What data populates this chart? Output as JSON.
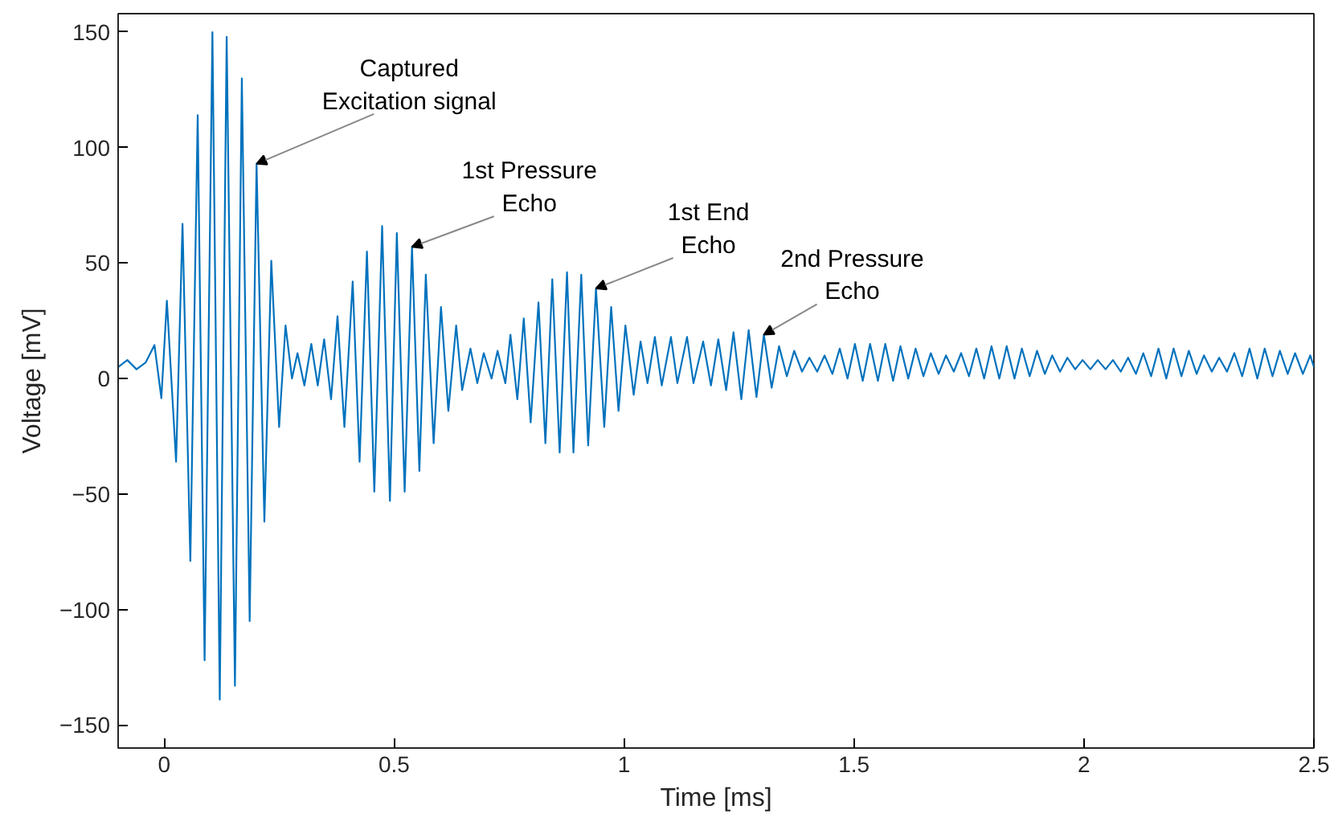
{
  "chart_data": {
    "type": "line",
    "xlabel": "Time [ms]",
    "ylabel": "Voltage [mV]",
    "xlim": [
      -0.1,
      2.5
    ],
    "ylim": [
      -160,
      158
    ],
    "xticks": [
      0,
      0.5,
      1,
      1.5,
      2,
      2.5
    ],
    "yticks": [
      -150,
      -100,
      -50,
      0,
      50,
      100,
      150
    ],
    "grid": false,
    "marker": "none",
    "line_style": "solid",
    "annotations": [
      {
        "text": "Captured\nExcitation signal",
        "x": 0.201,
        "y": 93
      },
      {
        "text": "1st Pressure\nEcho",
        "x": 0.539,
        "y": 57
      },
      {
        "text": "1st End\nEcho",
        "x": 0.939,
        "y": 39
      },
      {
        "text": "2nd Pressure\nEcho",
        "x": 1.304,
        "y": 19
      }
    ],
    "series": [
      {
        "color": "#0072bd",
        "x": [
          -0.1,
          -0.08,
          -0.06,
          -0.04,
          -0.021,
          -0.006,
          0.006,
          0.026,
          0.04,
          0.057,
          0.073,
          0.088,
          0.105,
          0.121,
          0.136,
          0.154,
          0.169,
          0.186,
          0.201,
          0.218,
          0.233,
          0.25,
          0.264,
          0.278,
          0.29,
          0.305,
          0.32,
          0.334,
          0.348,
          0.363,
          0.377,
          0.392,
          0.41,
          0.425,
          0.441,
          0.457,
          0.474,
          0.491,
          0.506,
          0.523,
          0.539,
          0.555,
          0.569,
          0.586,
          0.602,
          0.618,
          0.635,
          0.648,
          0.666,
          0.681,
          0.695,
          0.712,
          0.725,
          0.742,
          0.753,
          0.768,
          0.782,
          0.797,
          0.814,
          0.829,
          0.844,
          0.86,
          0.876,
          0.89,
          0.907,
          0.922,
          0.939,
          0.957,
          0.972,
          0.988,
          1.003,
          1.021,
          1.036,
          1.051,
          1.067,
          1.082,
          1.102,
          1.116,
          1.137,
          1.151,
          1.172,
          1.189,
          1.205,
          1.222,
          1.238,
          1.255,
          1.271,
          1.288,
          1.304,
          1.321,
          1.337,
          1.354,
          1.37,
          1.387,
          1.403,
          1.42,
          1.436,
          1.453,
          1.469,
          1.486,
          1.502,
          1.519,
          1.535,
          1.552,
          1.568,
          1.585,
          1.601,
          1.618,
          1.634,
          1.651,
          1.667,
          1.684,
          1.7,
          1.717,
          1.733,
          1.75,
          1.766,
          1.783,
          1.799,
          1.816,
          1.832,
          1.849,
          1.865,
          1.882,
          1.898,
          1.915,
          1.931,
          1.948,
          1.964,
          1.981,
          1.997,
          2.014,
          2.03,
          2.047,
          2.063,
          2.08,
          2.096,
          2.113,
          2.129,
          2.146,
          2.162,
          2.179,
          2.195,
          2.212,
          2.228,
          2.245,
          2.261,
          2.278,
          2.294,
          2.311,
          2.327,
          2.344,
          2.36,
          2.377,
          2.393,
          2.41,
          2.426,
          2.443,
          2.459,
          2.476,
          2.492,
          2.5
        ],
        "values": [
          5,
          8,
          4,
          7,
          14.5,
          -8.5,
          33.7,
          -36,
          67,
          -79,
          114,
          -122,
          150,
          -139,
          148,
          -133,
          130,
          -105,
          93,
          -62,
          51,
          -21,
          23,
          0,
          11,
          -3,
          15,
          -3,
          17,
          -9,
          27,
          -21,
          42,
          -36,
          55,
          -49,
          66,
          -53,
          63,
          -49,
          57,
          -40,
          45,
          -28,
          31,
          -14,
          23,
          -5,
          13,
          -2,
          11,
          0,
          12,
          -2,
          19,
          -9,
          26,
          -19,
          33,
          -28,
          43,
          -32,
          46,
          -32,
          45,
          -29,
          39,
          -21,
          31,
          -14,
          23,
          -7,
          16,
          -2,
          18,
          -3,
          18,
          -2,
          18,
          -2,
          16,
          -3,
          17,
          -5,
          20,
          -9,
          21,
          -8,
          19,
          -4,
          14,
          1,
          12,
          3,
          9,
          3,
          10,
          2,
          13,
          0,
          15,
          -1,
          15,
          -1,
          15,
          -1,
          14,
          0,
          13,
          1,
          11,
          2,
          10,
          3,
          11,
          1,
          13,
          0,
          14,
          0,
          14,
          0,
          13,
          1,
          12,
          2,
          10,
          3,
          9,
          4,
          8,
          4,
          8,
          4,
          8,
          3,
          9,
          2,
          11,
          1,
          13,
          0,
          13,
          1,
          12,
          2,
          10,
          3,
          9,
          3,
          11,
          1,
          13,
          0,
          13,
          1,
          12,
          2,
          11,
          2,
          10,
          5
        ]
      }
    ]
  }
}
